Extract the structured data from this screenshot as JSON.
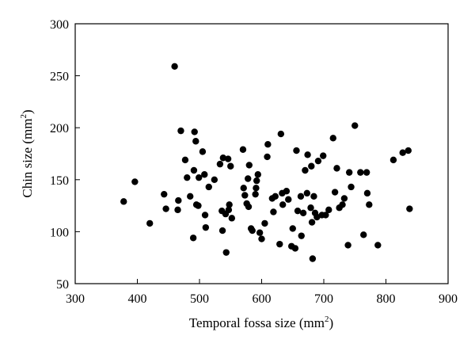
{
  "chart_data": {
    "type": "scatter",
    "title": "",
    "xlabel": "Temporal fossa size (mm",
    "xlabel_sup": "2",
    "xlabel_close": ")",
    "ylabel": "Chin size (mm",
    "ylabel_sup": "2",
    "ylabel_close": ")",
    "xlim": [
      300,
      900
    ],
    "ylim": [
      50,
      300
    ],
    "xticks": [
      300,
      400,
      500,
      600,
      700,
      800,
      900
    ],
    "yticks": [
      50,
      100,
      150,
      200,
      250,
      300
    ],
    "xtick_labels": [
      "300",
      "400",
      "500",
      "600",
      "700",
      "800",
      "900"
    ],
    "ytick_labels": [
      "50",
      "100",
      "150",
      "200",
      "250",
      "300"
    ],
    "grid": false,
    "legend": "none",
    "marker_color": "#000000",
    "points": [
      {
        "x": 378,
        "y": 129
      },
      {
        "x": 396,
        "y": 148
      },
      {
        "x": 420,
        "y": 108
      },
      {
        "x": 443,
        "y": 136
      },
      {
        "x": 446,
        "y": 122
      },
      {
        "x": 460,
        "y": 259
      },
      {
        "x": 465,
        "y": 121
      },
      {
        "x": 466,
        "y": 130
      },
      {
        "x": 470,
        "y": 197
      },
      {
        "x": 477,
        "y": 169
      },
      {
        "x": 480,
        "y": 152
      },
      {
        "x": 485,
        "y": 134
      },
      {
        "x": 490,
        "y": 94
      },
      {
        "x": 491,
        "y": 159
      },
      {
        "x": 492,
        "y": 196
      },
      {
        "x": 494,
        "y": 187
      },
      {
        "x": 495,
        "y": 126
      },
      {
        "x": 498,
        "y": 125
      },
      {
        "x": 499,
        "y": 152
      },
      {
        "x": 505,
        "y": 177
      },
      {
        "x": 508,
        "y": 155
      },
      {
        "x": 509,
        "y": 116
      },
      {
        "x": 510,
        "y": 104
      },
      {
        "x": 515,
        "y": 143
      },
      {
        "x": 524,
        "y": 150
      },
      {
        "x": 533,
        "y": 165
      },
      {
        "x": 536,
        "y": 120
      },
      {
        "x": 537,
        "y": 101
      },
      {
        "x": 538,
        "y": 171
      },
      {
        "x": 542,
        "y": 117
      },
      {
        "x": 543,
        "y": 80
      },
      {
        "x": 546,
        "y": 170
      },
      {
        "x": 547,
        "y": 121
      },
      {
        "x": 548,
        "y": 126
      },
      {
        "x": 550,
        "y": 163
      },
      {
        "x": 552,
        "y": 113
      },
      {
        "x": 570,
        "y": 179
      },
      {
        "x": 571,
        "y": 142
      },
      {
        "x": 573,
        "y": 135
      },
      {
        "x": 576,
        "y": 127
      },
      {
        "x": 578,
        "y": 151
      },
      {
        "x": 579,
        "y": 124
      },
      {
        "x": 580,
        "y": 164
      },
      {
        "x": 583,
        "y": 103
      },
      {
        "x": 585,
        "y": 101
      },
      {
        "x": 590,
        "y": 136
      },
      {
        "x": 591,
        "y": 142
      },
      {
        "x": 592,
        "y": 149
      },
      {
        "x": 594,
        "y": 155
      },
      {
        "x": 597,
        "y": 99
      },
      {
        "x": 600,
        "y": 93
      },
      {
        "x": 605,
        "y": 108
      },
      {
        "x": 609,
        "y": 172
      },
      {
        "x": 610,
        "y": 184
      },
      {
        "x": 617,
        "y": 132
      },
      {
        "x": 619,
        "y": 119
      },
      {
        "x": 622,
        "y": 134
      },
      {
        "x": 629,
        "y": 88
      },
      {
        "x": 631,
        "y": 194
      },
      {
        "x": 633,
        "y": 137
      },
      {
        "x": 634,
        "y": 126
      },
      {
        "x": 640,
        "y": 139
      },
      {
        "x": 643,
        "y": 131
      },
      {
        "x": 648,
        "y": 86
      },
      {
        "x": 650,
        "y": 103
      },
      {
        "x": 654,
        "y": 84
      },
      {
        "x": 656,
        "y": 178
      },
      {
        "x": 658,
        "y": 120
      },
      {
        "x": 663,
        "y": 134
      },
      {
        "x": 664,
        "y": 96
      },
      {
        "x": 667,
        "y": 118
      },
      {
        "x": 670,
        "y": 159
      },
      {
        "x": 673,
        "y": 137
      },
      {
        "x": 674,
        "y": 174
      },
      {
        "x": 679,
        "y": 123
      },
      {
        "x": 680,
        "y": 163
      },
      {
        "x": 681,
        "y": 109
      },
      {
        "x": 682,
        "y": 74
      },
      {
        "x": 684,
        "y": 134
      },
      {
        "x": 686,
        "y": 118
      },
      {
        "x": 689,
        "y": 114
      },
      {
        "x": 691,
        "y": 168
      },
      {
        "x": 697,
        "y": 116
      },
      {
        "x": 699,
        "y": 173
      },
      {
        "x": 703,
        "y": 116
      },
      {
        "x": 708,
        "y": 121
      },
      {
        "x": 715,
        "y": 190
      },
      {
        "x": 718,
        "y": 138
      },
      {
        "x": 721,
        "y": 161
      },
      {
        "x": 725,
        "y": 123
      },
      {
        "x": 730,
        "y": 126
      },
      {
        "x": 733,
        "y": 132
      },
      {
        "x": 739,
        "y": 87
      },
      {
        "x": 741,
        "y": 157
      },
      {
        "x": 744,
        "y": 143
      },
      {
        "x": 750,
        "y": 202
      },
      {
        "x": 759,
        "y": 157
      },
      {
        "x": 764,
        "y": 97
      },
      {
        "x": 769,
        "y": 157
      },
      {
        "x": 770,
        "y": 137
      },
      {
        "x": 773,
        "y": 126
      },
      {
        "x": 787,
        "y": 87
      },
      {
        "x": 812,
        "y": 169
      },
      {
        "x": 827,
        "y": 176
      },
      {
        "x": 836,
        "y": 178
      },
      {
        "x": 838,
        "y": 122
      }
    ]
  }
}
